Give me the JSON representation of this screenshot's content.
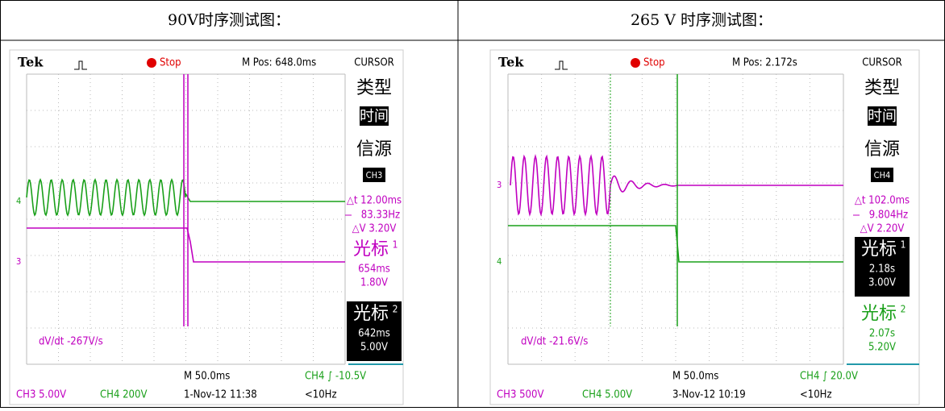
{
  "header": {
    "left": "90V时序测试图：",
    "right": "265 V 时序测试图："
  },
  "scopes": [
    {
      "brand": "Tek",
      "state": "Stop",
      "position": "M Pos: 648.0ms",
      "menu": "CURSOR",
      "type_label": "类型",
      "type_value": "时间",
      "source_label": "信源",
      "source_value": "CH3",
      "delta_t": "△t 12.00ms",
      "frequency": "83.33Hz",
      "delta_v": "△V 3.20V",
      "cursor1": {
        "label": "光标",
        "index": "1",
        "time": "654ms",
        "volts": "1.80V"
      },
      "cursor2": {
        "label": "光标",
        "index": "2",
        "time": "642ms",
        "volts": "5.00V"
      },
      "slope": "dV/dt -267V/s",
      "timebase": "M 50.0ms",
      "trigger": "CH4 ∫ -10.5V",
      "ch3": "CH3 5.00V",
      "ch4": "CH4 200V",
      "date": "1-Nov-12 11:38",
      "rate": "<10Hz",
      "markers": [
        "4",
        "3"
      ]
    },
    {
      "brand": "Tek",
      "state": "Stop",
      "position": "M Pos: 2.172s",
      "menu": "CURSOR",
      "type_label": "类型",
      "type_value": "时间",
      "source_label": "信源",
      "source_value": "CH4",
      "delta_t": "△t 102.0ms",
      "frequency": "9.804Hz",
      "delta_v": "△V 2.20V",
      "cursor1": {
        "label": "光标",
        "index": "1",
        "time": "2.18s",
        "volts": "3.00V"
      },
      "cursor2": {
        "label": "光标",
        "index": "2",
        "time": "2.07s",
        "volts": "5.20V"
      },
      "slope": "dV/dt -21.6V/s",
      "timebase": "M 50.0ms",
      "trigger": "CH4 ∫ 20.0V",
      "ch3": "CH3 500V",
      "ch4": "CH4 5.00V",
      "date": "3-Nov-12 10:19",
      "rate": "<10Hz",
      "markers": [
        "3",
        "4"
      ]
    }
  ]
}
